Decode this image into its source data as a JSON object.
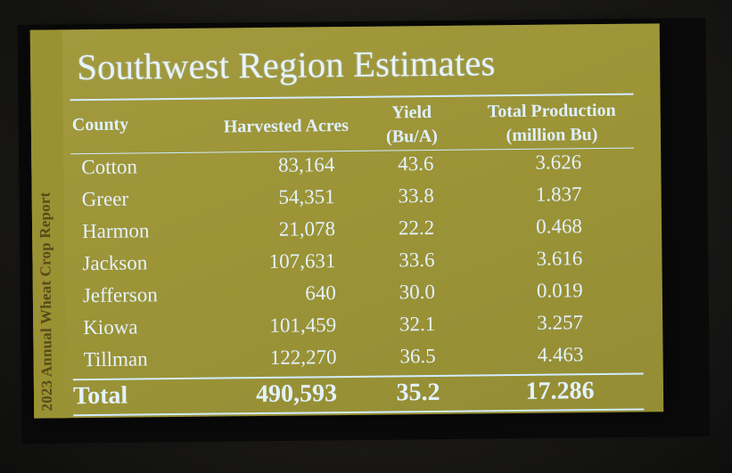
{
  "slide": {
    "title": "Southwest Region Estimates",
    "side_label": "2023 Annual Wheat Crop Report"
  },
  "table": {
    "headers": {
      "county": "County",
      "acres": "Harvested Acres",
      "yield_line1": "Yield",
      "yield_line2": "(Bu/A)",
      "prod_line1": "Total Production",
      "prod_line2": "(million Bu)"
    },
    "rows": [
      {
        "county": "Cotton",
        "acres": "83,164",
        "yield": "43.6",
        "production": "3.626"
      },
      {
        "county": "Greer",
        "acres": "54,351",
        "yield": "33.8",
        "production": "1.837"
      },
      {
        "county": "Harmon",
        "acres": "21,078",
        "yield": "22.2",
        "production": "0.468"
      },
      {
        "county": "Jackson",
        "acres": "107,631",
        "yield": "33.6",
        "production": "3.616"
      },
      {
        "county": "Jefferson",
        "acres": "640",
        "yield": "30.0",
        "production": "0.019"
      },
      {
        "county": "Kiowa",
        "acres": "101,459",
        "yield": "32.1",
        "production": "3.257"
      },
      {
        "county": "Tillman",
        "acres": "122,270",
        "yield": "36.5",
        "production": "4.463"
      }
    ],
    "total": {
      "label": "Total",
      "acres": "490,593",
      "yield": "35.2",
      "production": "17.286"
    }
  }
}
